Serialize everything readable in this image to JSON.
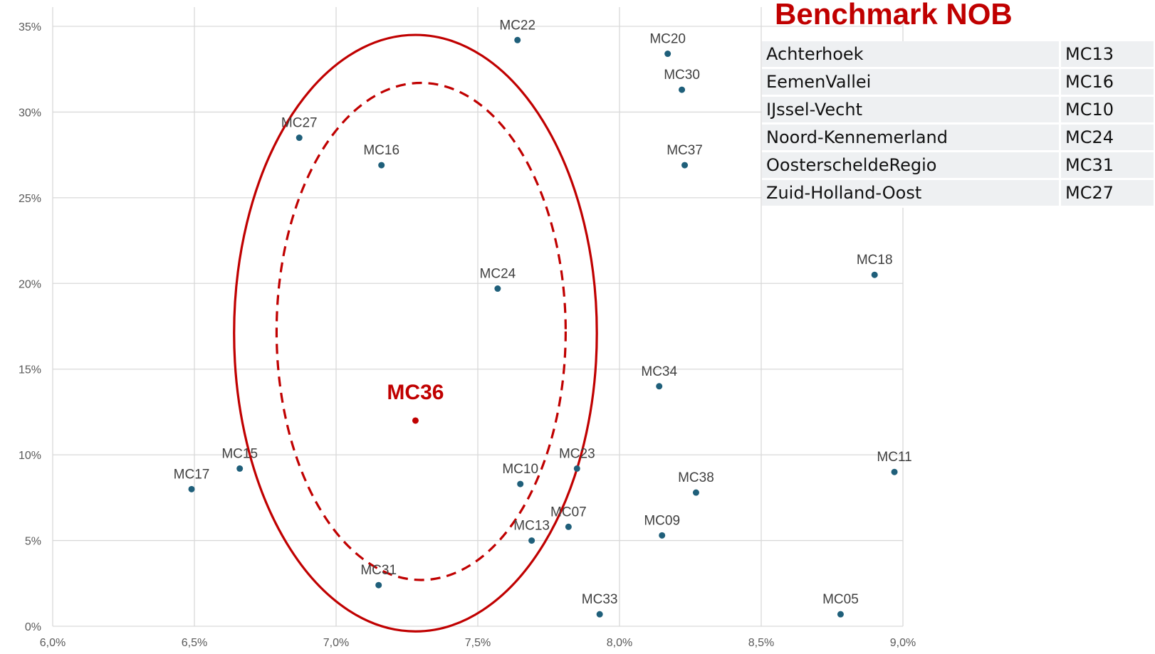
{
  "title": "Benchmark NOB",
  "legend_table": [
    {
      "region": "Achterhoek",
      "code": "MC13"
    },
    {
      "region": "EemenVallei",
      "code": "MC16"
    },
    {
      "region": "IJssel-Vecht",
      "code": "MC10"
    },
    {
      "region": "Noord-Kennemerland",
      "code": "MC24"
    },
    {
      "region": "OosterscheldeRegio",
      "code": "MC31"
    },
    {
      "region": "Zuid-Holland-Oost",
      "code": "MC27"
    }
  ],
  "colors": {
    "points": "#1f5f7a",
    "highlight": "#c00000",
    "grid": "#d9d9d9"
  },
  "chart_data": {
    "type": "scatter",
    "title": "",
    "xlabel": "",
    "ylabel": "",
    "xlim": [
      6.0,
      9.0
    ],
    "ylim": [
      0,
      35
    ],
    "grid": true,
    "xticks": [
      "6,0%",
      "6,5%",
      "7,0%",
      "7,5%",
      "8,0%",
      "8,5%",
      "9,0%"
    ],
    "yticks": [
      "0%",
      "5%",
      "10%",
      "15%",
      "20%",
      "25%",
      "30%",
      "35%"
    ],
    "points": [
      {
        "label": "MC22",
        "x": 7.64,
        "y": 34.2
      },
      {
        "label": "MC20",
        "x": 8.17,
        "y": 33.4
      },
      {
        "label": "MC30",
        "x": 8.22,
        "y": 31.3
      },
      {
        "label": "MC27",
        "x": 6.87,
        "y": 28.5
      },
      {
        "label": "MC16",
        "x": 7.16,
        "y": 26.9
      },
      {
        "label": "MC37",
        "x": 8.23,
        "y": 26.9
      },
      {
        "label": "MC24",
        "x": 7.57,
        "y": 19.7
      },
      {
        "label": "MC18",
        "x": 8.9,
        "y": 20.5
      },
      {
        "label": "MC34",
        "x": 8.14,
        "y": 14.0
      },
      {
        "label": "MC15",
        "x": 6.66,
        "y": 9.2
      },
      {
        "label": "MC17",
        "x": 6.49,
        "y": 8.0
      },
      {
        "label": "MC10",
        "x": 7.65,
        "y": 8.3
      },
      {
        "label": "MC23",
        "x": 7.85,
        "y": 9.2
      },
      {
        "label": "MC11",
        "x": 8.97,
        "y": 9.0
      },
      {
        "label": "MC38",
        "x": 8.27,
        "y": 7.8
      },
      {
        "label": "MC07",
        "x": 7.82,
        "y": 5.8
      },
      {
        "label": "MC13",
        "x": 7.69,
        "y": 5.0
      },
      {
        "label": "MC09",
        "x": 8.15,
        "y": 5.3
      },
      {
        "label": "MC31",
        "x": 7.15,
        "y": 2.4
      },
      {
        "label": "MC33",
        "x": 7.93,
        "y": 0.7
      },
      {
        "label": "MC05",
        "x": 8.78,
        "y": 0.7
      }
    ],
    "highlight": {
      "label": "MC36",
      "x": 7.28,
      "y": 12.0
    },
    "ellipses": [
      {
        "style": "solid",
        "cx": 7.28,
        "cy": 17.1,
        "rx": 0.64,
        "ry": 17.4
      },
      {
        "style": "dashed",
        "cx": 7.3,
        "cy": 17.2,
        "rx": 0.51,
        "ry": 14.5
      }
    ]
  }
}
